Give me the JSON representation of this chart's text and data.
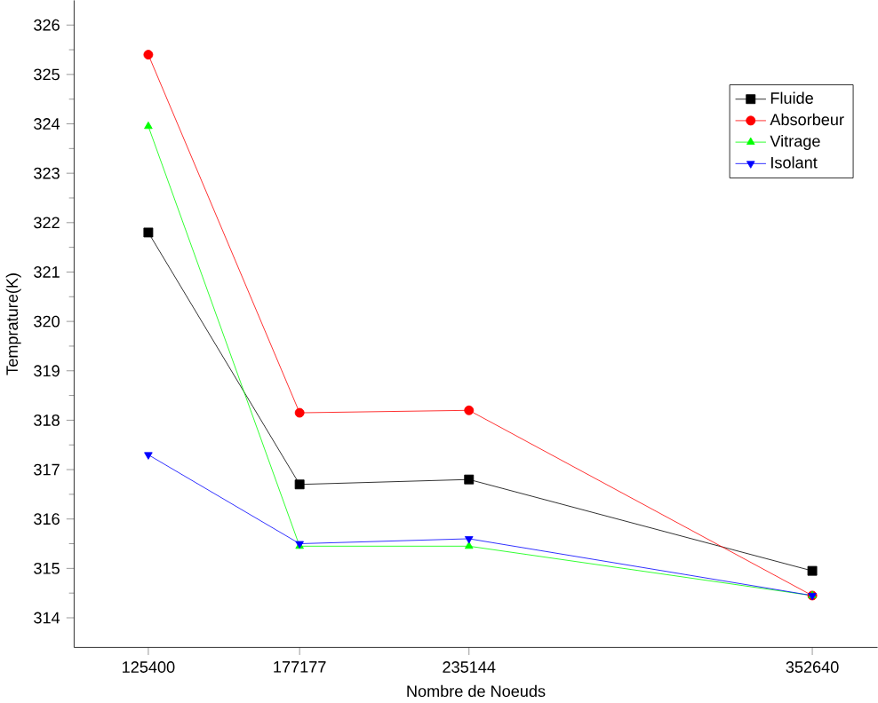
{
  "chart_data": {
    "type": "line",
    "xlabel": "Nombre de Noeuds",
    "ylabel": "Temprature(K)",
    "x": [
      125400,
      177177,
      235144,
      352640
    ],
    "xlim": [
      100000,
      375000
    ],
    "ylim": [
      313.4,
      326.5
    ],
    "xticks": [
      125400,
      177177,
      235144,
      352640
    ],
    "yticks": [
      314,
      315,
      316,
      317,
      318,
      319,
      320,
      321,
      322,
      323,
      324,
      325,
      326
    ],
    "legend": "top right",
    "grid": false,
    "series": [
      {
        "name": "Fluide",
        "color": "#000000",
        "marker": "square",
        "values": [
          321.8,
          316.7,
          316.8,
          314.95
        ]
      },
      {
        "name": "Absorbeur",
        "color": "#ff0000",
        "marker": "circle",
        "values": [
          325.4,
          318.15,
          318.2,
          314.45
        ]
      },
      {
        "name": "Vitrage",
        "color": "#00ff00",
        "marker": "triangle",
        "values": [
          323.95,
          315.45,
          315.45,
          314.45
        ]
      },
      {
        "name": "Isolant",
        "color": "#0000ff",
        "marker": "triangle down",
        "values": [
          317.3,
          315.5,
          315.6,
          314.45
        ]
      }
    ]
  }
}
